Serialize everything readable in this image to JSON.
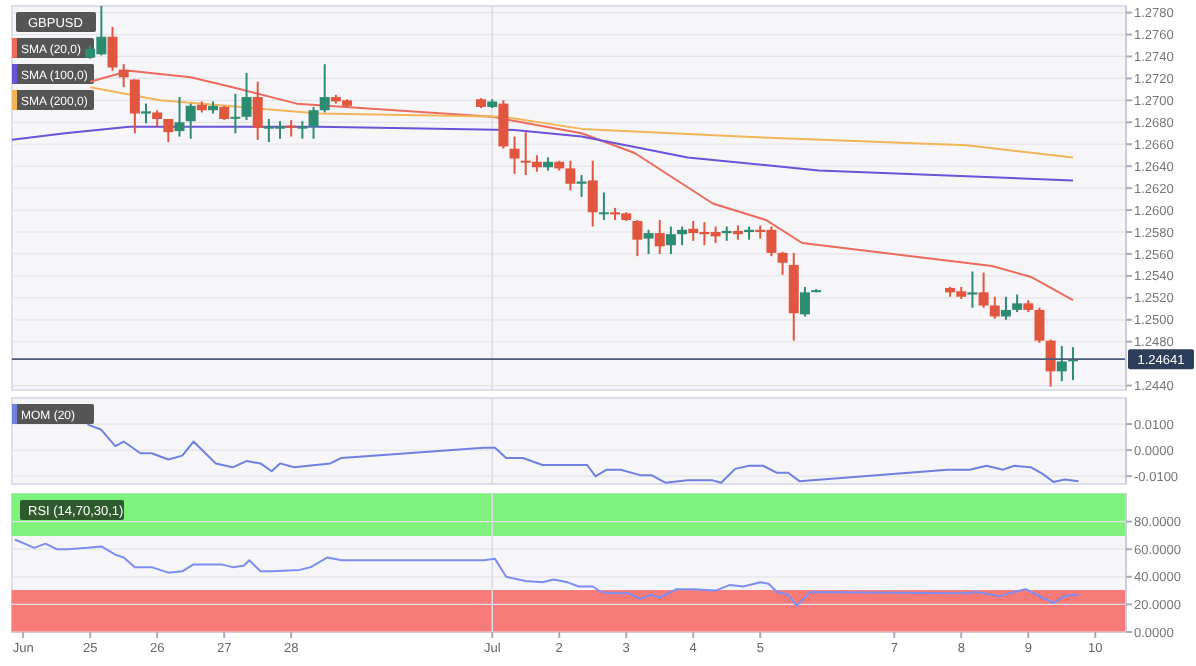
{
  "chart_data": [
    {
      "type": "candlestick",
      "title": "GBPUSD",
      "x": [
        "--06-25T00:00",
        "--06-25T04:00",
        "--06-25T08:00",
        "--06-25T12:00",
        "--06-25T16:00",
        "--06-25T20:00",
        "--06-26T00:00",
        "--06-26T04:00",
        "--06-26T08:00",
        "--06-26T12:00",
        "--06-26T16:00",
        "--06-26T20:00",
        "--06-27T00:00",
        "--06-27T04:00",
        "--06-27T08:00",
        "--06-27T12:00",
        "--06-27T16:00",
        "--06-27T20:00",
        "--06-28T00:00",
        "--06-28T04:00",
        "--06-28T08:00",
        "--06-28T12:00",
        "--06-28T16:00",
        "--06-28T20:00",
        "--06-30T20:00",
        "--07-01T00:00",
        "--07-01T04:00",
        "--07-01T08:00",
        "--07-01T12:00",
        "--07-01T16:00",
        "--07-01T20:00",
        "--07-02T00:00",
        "--07-02T04:00",
        "--07-02T08:00",
        "--07-02T12:00",
        "--07-02T16:00",
        "--07-02T20:00",
        "--07-03T00:00",
        "--07-03T04:00",
        "--07-03T08:00",
        "--07-03T12:00",
        "--07-03T16:00",
        "--07-03T20:00",
        "--07-04T00:00",
        "--07-04T04:00",
        "--07-04T08:00",
        "--07-04T12:00",
        "--07-04T16:00",
        "--07-04T20:00",
        "--07-05T00:00",
        "--07-05T04:00",
        "--07-05T08:00",
        "--07-05T12:00",
        "--07-05T16:00",
        "--07-05T20:00",
        "--07-07T20:00",
        "--07-08T00:00",
        "--07-08T04:00",
        "--07-08T08:00",
        "--07-08T12:00",
        "--07-08T16:00",
        "--07-08T20:00",
        "--07-09T00:00",
        "--07-09T04:00",
        "--07-09T08:00",
        "--07-09T12:00",
        "--07-09T16:00"
      ],
      "ohlc": [
        [
          1.2739,
          1.275,
          1.2738,
          1.2747
        ],
        [
          1.2742,
          1.2786,
          1.2741,
          1.2758
        ],
        [
          1.2758,
          1.2767,
          1.2727,
          1.273
        ],
        [
          1.2728,
          1.2733,
          1.2712,
          1.2721
        ],
        [
          1.2719,
          1.2719,
          1.267,
          1.2688
        ],
        [
          1.2688,
          1.2697,
          1.2679,
          1.269
        ],
        [
          1.2689,
          1.2691,
          1.2676,
          1.2683
        ],
        [
          1.2683,
          1.2683,
          1.2662,
          1.2671
        ],
        [
          1.2672,
          1.2703,
          1.2667,
          1.268
        ],
        [
          1.2681,
          1.2697,
          1.2665,
          1.2695
        ],
        [
          1.2696,
          1.2699,
          1.2689,
          1.2691
        ],
        [
          1.2691,
          1.2699,
          1.2688,
          1.2695
        ],
        [
          1.2694,
          1.2695,
          1.2682,
          1.2683
        ],
        [
          1.2684,
          1.2706,
          1.267,
          1.2685
        ],
        [
          1.2685,
          1.2725,
          1.2682,
          1.2703
        ],
        [
          1.2703,
          1.2717,
          1.2664,
          1.2675
        ],
        [
          1.2675,
          1.2683,
          1.2662,
          1.2676
        ],
        [
          1.2675,
          1.2681,
          1.2665,
          1.2676
        ],
        [
          1.2677,
          1.2682,
          1.2667,
          1.2675
        ],
        [
          1.2675,
          1.2681,
          1.2665,
          1.2676
        ],
        [
          1.2676,
          1.2694,
          1.2665,
          1.2691
        ],
        [
          1.2691,
          1.2733,
          1.2689,
          1.2703
        ],
        [
          1.2703,
          1.2705,
          1.2697,
          1.2699
        ],
        [
          1.27,
          1.2701,
          1.2694,
          1.2695
        ],
        [
          1.2701,
          1.2702,
          1.2693,
          1.2694
        ],
        [
          1.2694,
          1.2701,
          1.2693,
          1.2699
        ],
        [
          1.2697,
          1.27,
          1.2656,
          1.2658
        ],
        [
          1.2656,
          1.2667,
          1.2633,
          1.2647
        ],
        [
          1.2645,
          1.2671,
          1.2632,
          1.2644
        ],
        [
          1.2644,
          1.265,
          1.2635,
          1.2639
        ],
        [
          1.2639,
          1.2648,
          1.2636,
          1.2644
        ],
        [
          1.2644,
          1.2645,
          1.2636,
          1.2638
        ],
        [
          1.2638,
          1.2645,
          1.2618,
          1.2624
        ],
        [
          1.2624,
          1.2632,
          1.2612,
          1.2626
        ],
        [
          1.2627,
          1.2645,
          1.2585,
          1.2598
        ],
        [
          1.2597,
          1.2616,
          1.2591,
          1.2598
        ],
        [
          1.2598,
          1.2602,
          1.2591,
          1.2596
        ],
        [
          1.2597,
          1.2598,
          1.259,
          1.2591
        ],
        [
          1.259,
          1.2591,
          1.2558,
          1.2573
        ],
        [
          1.2574,
          1.2582,
          1.256,
          1.2579
        ],
        [
          1.2579,
          1.2591,
          1.256,
          1.2567
        ],
        [
          1.2568,
          1.2585,
          1.256,
          1.2578
        ],
        [
          1.2578,
          1.2585,
          1.2568,
          1.2582
        ],
        [
          1.2583,
          1.259,
          1.2572,
          1.2579
        ],
        [
          1.258,
          1.2589,
          1.2568,
          1.2578
        ],
        [
          1.258,
          1.2585,
          1.257,
          1.2576
        ],
        [
          1.2579,
          1.2585,
          1.2572,
          1.2581
        ],
        [
          1.2581,
          1.2586,
          1.2573,
          1.2578
        ],
        [
          1.258,
          1.2585,
          1.2573,
          1.2582
        ],
        [
          1.2582,
          1.2586,
          1.2574,
          1.258
        ],
        [
          1.2582,
          1.2585,
          1.2558,
          1.2561
        ],
        [
          1.2561,
          1.2562,
          1.2541,
          1.2552
        ],
        [
          1.255,
          1.2561,
          1.2481,
          1.2506
        ],
        [
          1.2505,
          1.253,
          1.2503,
          1.2525
        ],
        [
          1.2526,
          1.2528,
          1.2525,
          1.2527
        ],
        [
          1.2529,
          1.253,
          1.2521,
          1.2525
        ],
        [
          1.2526,
          1.253,
          1.2519,
          1.2521
        ],
        [
          1.2523,
          1.2544,
          1.2511,
          1.2525
        ],
        [
          1.2525,
          1.2543,
          1.2511,
          1.2513
        ],
        [
          1.2513,
          1.2521,
          1.2501,
          1.2503
        ],
        [
          1.2503,
          1.2521,
          1.25,
          1.2509
        ],
        [
          1.2509,
          1.2523,
          1.2507,
          1.2515
        ],
        [
          1.2515,
          1.2518,
          1.2507,
          1.2509
        ],
        [
          1.2509,
          1.2511,
          1.2479,
          1.2481
        ],
        [
          1.2481,
          1.2482,
          1.2439,
          1.2453
        ],
        [
          1.2453,
          1.2476,
          1.2444,
          1.2462
        ],
        [
          1.2463,
          1.2475,
          1.2445,
          1.2464
        ]
      ],
      "colors": [
        "#2d8b72",
        "#2d8b72",
        "#e0563f",
        "#e0563f",
        "#e0563f",
        "#2d8b72",
        "#e0563f",
        "#e0563f",
        "#2d8b72",
        "#2d8b72",
        "#e0563f",
        "#2d8b72",
        "#e0563f",
        "#2d8b72",
        "#2d8b72",
        "#e0563f",
        "#2d8b72",
        "#2d8b72",
        "#e0563f",
        "#2d8b72",
        "#2d8b72",
        "#2d8b72",
        "#e0563f",
        "#e0563f",
        "#e0563f",
        "#2d8b72",
        "#e0563f",
        "#e0563f",
        "#e0563f",
        "#e0563f",
        "#2d8b72",
        "#e0563f",
        "#e0563f",
        "#2d8b72",
        "#e0563f",
        "#2d8b72",
        "#e0563f",
        "#e0563f",
        "#e0563f",
        "#2d8b72",
        "#e0563f",
        "#2d8b72",
        "#2d8b72",
        "#e0563f",
        "#e0563f",
        "#e0563f",
        "#2d8b72",
        "#e0563f",
        "#2d8b72",
        "#e0563f",
        "#e0563f",
        "#e0563f",
        "#e0563f",
        "#2d8b72",
        "#2d8b72",
        "#e0563f",
        "#e0563f",
        "#2d8b72",
        "#e0563f",
        "#e0563f",
        "#2d8b72",
        "#2d8b72",
        "#e0563f",
        "#e0563f",
        "#e0563f",
        "#2d8b72",
        "#2d8b72"
      ],
      "series": [
        {
          "name": "SMA (20,0)",
          "type": "line",
          "color": "#ec6b5c",
          "x": [
            "--06-25T00:00",
            "--06-25T14:00",
            "--06-26T12:00",
            "--06-27T03:00",
            "--06-28T02:00",
            "--07-01T00:00",
            "--07-02T08:00",
            "--07-03T03:00",
            "--07-04T07:00",
            "--07-05T02:00",
            "--07-05T15:00",
            "--07-08T11:00",
            "--07-09T01:00",
            "--07-09T16:00"
          ],
          "values": [
            1.2717,
            1.2727,
            1.2721,
            1.2712,
            1.2697,
            1.2685,
            1.267,
            1.2652,
            1.2606,
            1.2591,
            1.257,
            1.2549,
            1.2539,
            1.2518
          ]
        },
        {
          "name": "SMA (100,0)",
          "type": "line",
          "color": "#6b52d6",
          "x": [
            "--06-23T20:00",
            "--06-24T15:00",
            "--06-25T14:00",
            "--06-28T10:00",
            "--07-01T08:00",
            "--07-02T08:00",
            "--07-03T22:00",
            "--07-05T21:00",
            "--07-09T16:00"
          ],
          "values": [
            1.2664,
            1.267,
            1.2676,
            1.2676,
            1.2673,
            1.2667,
            1.2648,
            1.2636,
            1.2627
          ]
        },
        {
          "name": "SMA (200,0)",
          "type": "line",
          "color": "#f3b45a",
          "x": [
            "--06-25T00:00",
            "--06-26T01:00",
            "--06-28T10:00",
            "--07-01T04:00",
            "--07-02T08:00",
            "--07-04T17:00",
            "--07-08T02:00",
            "--07-09T16:00"
          ],
          "values": [
            1.2712,
            1.27,
            1.2688,
            1.2685,
            1.2674,
            1.2667,
            1.2659,
            1.2648
          ]
        }
      ],
      "xlim": [
        "--06-23T20:00",
        "--07-10T11:00"
      ],
      "ylim": [
        1.2436,
        1.2786
      ],
      "yticks": [
        {
          "value": 1.244,
          "label": "1.2440"
        },
        {
          "value": 1.248,
          "label": "1.2480"
        },
        {
          "value": 1.25,
          "label": "1.2500"
        },
        {
          "value": 1.252,
          "label": "1.2520"
        },
        {
          "value": 1.254,
          "label": "1.2540"
        },
        {
          "value": 1.256,
          "label": "1.2560"
        },
        {
          "value": 1.258,
          "label": "1.2580"
        },
        {
          "value": 1.26,
          "label": "1.2600"
        },
        {
          "value": 1.262,
          "label": "1.2620"
        },
        {
          "value": 1.264,
          "label": "1.2640"
        },
        {
          "value": 1.266,
          "label": "1.2660"
        },
        {
          "value": 1.268,
          "label": "1.2680"
        },
        {
          "value": 1.27,
          "label": "1.2700"
        },
        {
          "value": 1.272,
          "label": "1.2720"
        },
        {
          "value": 1.274,
          "label": "1.2740"
        },
        {
          "value": 1.276,
          "label": "1.2760"
        },
        {
          "value": 1.278,
          "label": "1.2780"
        }
      ],
      "ref_lines": [
        {
          "axis": "y",
          "value": 1.24641,
          "label": "1.24641"
        },
        {
          "axis": "x",
          "value": "--07-01"
        }
      ],
      "tick_labels": "y",
      "grid": "y",
      "legend": "top left"
    },
    {
      "type": "line",
      "series": [
        {
          "name": "MOM (20)",
          "color": "#6f80e0",
          "x": [
            "--06-24T23:00",
            "--06-25T04:00",
            "--06-25T09:00",
            "--06-25T12:00",
            "--06-25T18:00",
            "--06-25T22:00",
            "--06-26T04:00",
            "--06-26T09:00",
            "--06-26T13:00",
            "--06-26T21:00",
            "--06-27T03:00",
            "--06-27T08:00",
            "--06-27T13:00",
            "--06-27T17:00",
            "--06-27T20:00",
            "--06-28T01:00",
            "--06-28T14:00",
            "--06-28T18:00",
            "--06-30T21:00",
            "--07-01T01:00",
            "--07-01T05:00",
            "--07-01T11:00",
            "--07-01T18:00",
            "--07-02T01:00",
            "--07-02T10:00",
            "--07-02T13:00",
            "--07-02T17:00",
            "--07-02T22:00",
            "--07-03T05:00",
            "--07-03T09:00",
            "--07-03T14:00",
            "--07-03T22:00",
            "--07-04T07:00",
            "--07-04T10:00",
            "--07-04T15:00",
            "--07-04T20:00",
            "--07-05T01:00",
            "--07-05T06:00",
            "--07-05T10:00",
            "--07-05T14:00",
            "--07-07T19:00",
            "--07-08T03:00",
            "--07-08T09:00",
            "--07-08T15:00",
            "--07-08T19:00",
            "--07-09T01:00",
            "--07-09T05:00",
            "--07-09T09:00",
            "--07-09T13:00",
            "--07-09T18:00"
          ],
          "values": [
            0.0099,
            0.0078,
            0.0015,
            0.0033,
            -0.0012,
            -0.0012,
            -0.0036,
            -0.0021,
            0.0033,
            -0.0051,
            -0.0066,
            -0.0042,
            -0.0051,
            -0.0081,
            -0.0051,
            -0.0066,
            -0.0051,
            -0.003,
            0.0009,
            0.0009,
            -0.003,
            -0.003,
            -0.0057,
            -0.0057,
            -0.0057,
            -0.0101,
            -0.0075,
            -0.0075,
            -0.0096,
            -0.0096,
            -0.0125,
            -0.0116,
            -0.0116,
            -0.0125,
            -0.0072,
            -0.006,
            -0.006,
            -0.0087,
            -0.0087,
            -0.0119,
            -0.0075,
            -0.0075,
            -0.006,
            -0.0075,
            -0.006,
            -0.0066,
            -0.009,
            -0.0122,
            -0.0113,
            -0.0119
          ]
        }
      ],
      "xlim": [
        "--06-23T20:00",
        "--07-10T11:00"
      ],
      "ylim": [
        -0.013,
        0.02
      ],
      "yticks": [
        {
          "value": -0.01,
          "label": "-0.0100"
        },
        {
          "value": 0,
          "label": "0.0000"
        },
        {
          "value": 0.01,
          "label": "0.0100"
        }
      ],
      "ref_lines": [
        {
          "axis": "x",
          "value": "--07-01"
        }
      ],
      "tick_labels": "y",
      "grid": "y",
      "legend": "top left"
    },
    {
      "type": "line",
      "title": "RSI (14,70,30,1)",
      "series": [
        {
          "color": "#7d8ef0",
          "x": [
            "--06-23T21:00",
            "--06-24T04:00",
            "--06-24T08:00",
            "--06-24T12:00",
            "--06-24T16:00",
            "--06-24T23:00",
            "--06-25T04:00",
            "--06-25T09:00",
            "--06-25T12:00",
            "--06-25T16:00",
            "--06-25T22:00",
            "--06-26T04:00",
            "--06-26T09:00",
            "--06-26T13:00",
            "--06-26T18:00",
            "--06-26T23:00",
            "--06-27T03:00",
            "--06-27T07:00",
            "--06-27T09:00",
            "--06-27T13:00",
            "--06-27T17:00",
            "--06-28T03:00",
            "--06-28T07:00",
            "--06-28T13:00",
            "--06-28T18:00",
            "--06-30T21:00",
            "--07-01T01:00",
            "--07-01T05:00",
            "--07-01T12:00",
            "--07-01T18:00",
            "--07-01T22:00",
            "--07-02T03:00",
            "--07-02T07:00",
            "--07-02T12:00",
            "--07-02T15:00",
            "--07-02T20:00",
            "--07-03T01:00",
            "--07-03T05:00",
            "--07-03T09:00",
            "--07-03T12:00",
            "--07-03T18:00",
            "--07-04T00:00",
            "--07-04T08:00",
            "--07-04T13:00",
            "--07-04T18:00",
            "--07-05T00:00",
            "--07-05T03:00",
            "--07-05T06:00",
            "--07-05T10:00",
            "--07-05T13:00",
            "--07-05T18:00",
            "--07-07T20:00",
            "--07-08T02:00",
            "--07-08T05:00",
            "--07-08T14:00",
            "--07-08T19:00",
            "--07-08T23:00",
            "--07-09T03:00",
            "--07-09T09:00",
            "--07-09T13:00",
            "--07-09T18:00"
          ],
          "values": [
            67,
            61,
            64,
            60,
            60,
            61,
            62,
            56,
            54,
            47,
            47,
            43,
            44,
            49,
            49,
            49,
            47,
            48,
            52,
            44,
            44,
            45,
            47,
            54,
            52,
            52,
            53,
            40,
            37,
            36,
            38,
            36,
            33,
            33,
            29,
            28,
            28,
            24,
            27,
            25,
            31,
            31,
            30,
            34,
            33,
            36,
            35,
            29,
            27,
            19,
            29,
            28,
            28,
            29,
            26,
            29,
            31,
            27,
            21,
            26,
            27
          ]
        }
      ],
      "bands": [
        {
          "axis": "y",
          "from": 70,
          "to": 100,
          "color": "#7ef27a"
        },
        {
          "axis": "y",
          "from": 0,
          "to": 30,
          "color": "#f67a78"
        }
      ],
      "xlim": [
        "--06-23T20:00",
        "--07-10T11:00"
      ],
      "xticks": [
        {
          "value": "--06-24",
          "label": "Jun"
        },
        {
          "value": "--06-25",
          "label": "25"
        },
        {
          "value": "--06-26",
          "label": "26"
        },
        {
          "value": "--06-27",
          "label": "27"
        },
        {
          "value": "--06-28",
          "label": "28"
        },
        {
          "value": "--07-01",
          "label": "Jul"
        },
        {
          "value": "--07-02",
          "label": "2"
        },
        {
          "value": "--07-03",
          "label": "3"
        },
        {
          "value": "--07-04",
          "label": "4"
        },
        {
          "value": "--07-05",
          "label": "5"
        },
        {
          "value": "--07-07",
          "label": "7"
        },
        {
          "value": "--07-08",
          "label": "8"
        },
        {
          "value": "--07-09",
          "label": "9"
        },
        {
          "value": "--07-10",
          "label": "10"
        }
      ],
      "ylim": [
        0,
        100
      ],
      "yticks": [
        {
          "value": 0,
          "label": "0.0000"
        },
        {
          "value": 20,
          "label": "20.0000"
        },
        {
          "value": 40,
          "label": "40.0000"
        },
        {
          "value": 60,
          "label": "60.0000"
        },
        {
          "value": 80,
          "label": "80.0000"
        }
      ],
      "ref_lines": [
        {
          "axis": "x",
          "value": "--07-01"
        }
      ],
      "grid": "y"
    }
  ]
}
